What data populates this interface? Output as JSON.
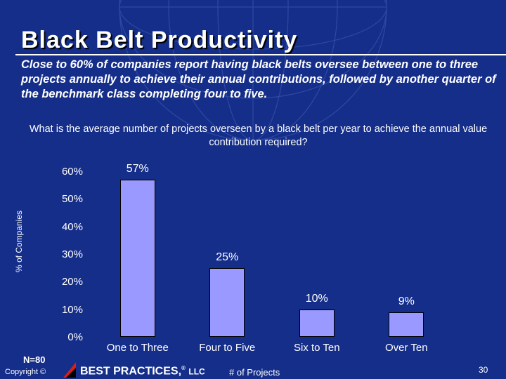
{
  "header": {
    "title": "Black Belt Productivity",
    "subtitle": "Close to 60% of companies report having black belts oversee between one to three projects annually to achieve their annual contributions, followed by another quarter of the benchmark class completing four to five."
  },
  "chart_data": {
    "type": "bar",
    "title": "What is the average number of projects overseen by a black belt per year to achieve the annual value contribution required?",
    "xlabel": "# of Projects",
    "ylabel": "% of Companies",
    "categories": [
      "One to Three",
      "Four to Five",
      "Six to Ten",
      "Over Ten"
    ],
    "values": [
      57,
      25,
      10,
      9
    ],
    "value_labels": [
      "57%",
      "25%",
      "10%",
      "9%"
    ],
    "ylim": [
      0,
      60
    ],
    "yticks": [
      "0%",
      "10%",
      "20%",
      "30%",
      "40%",
      "50%",
      "60%"
    ],
    "grid": false,
    "legend": "none",
    "bar_color": "#9999ff",
    "background_color": "#152e8a"
  },
  "footer": {
    "sample_size": "N=80",
    "copyright": "Copyright ©",
    "brand_name": "BEST PRACTICES,",
    "brand_mark": "®",
    "brand_suffix": "LLC",
    "page_number": "30"
  }
}
